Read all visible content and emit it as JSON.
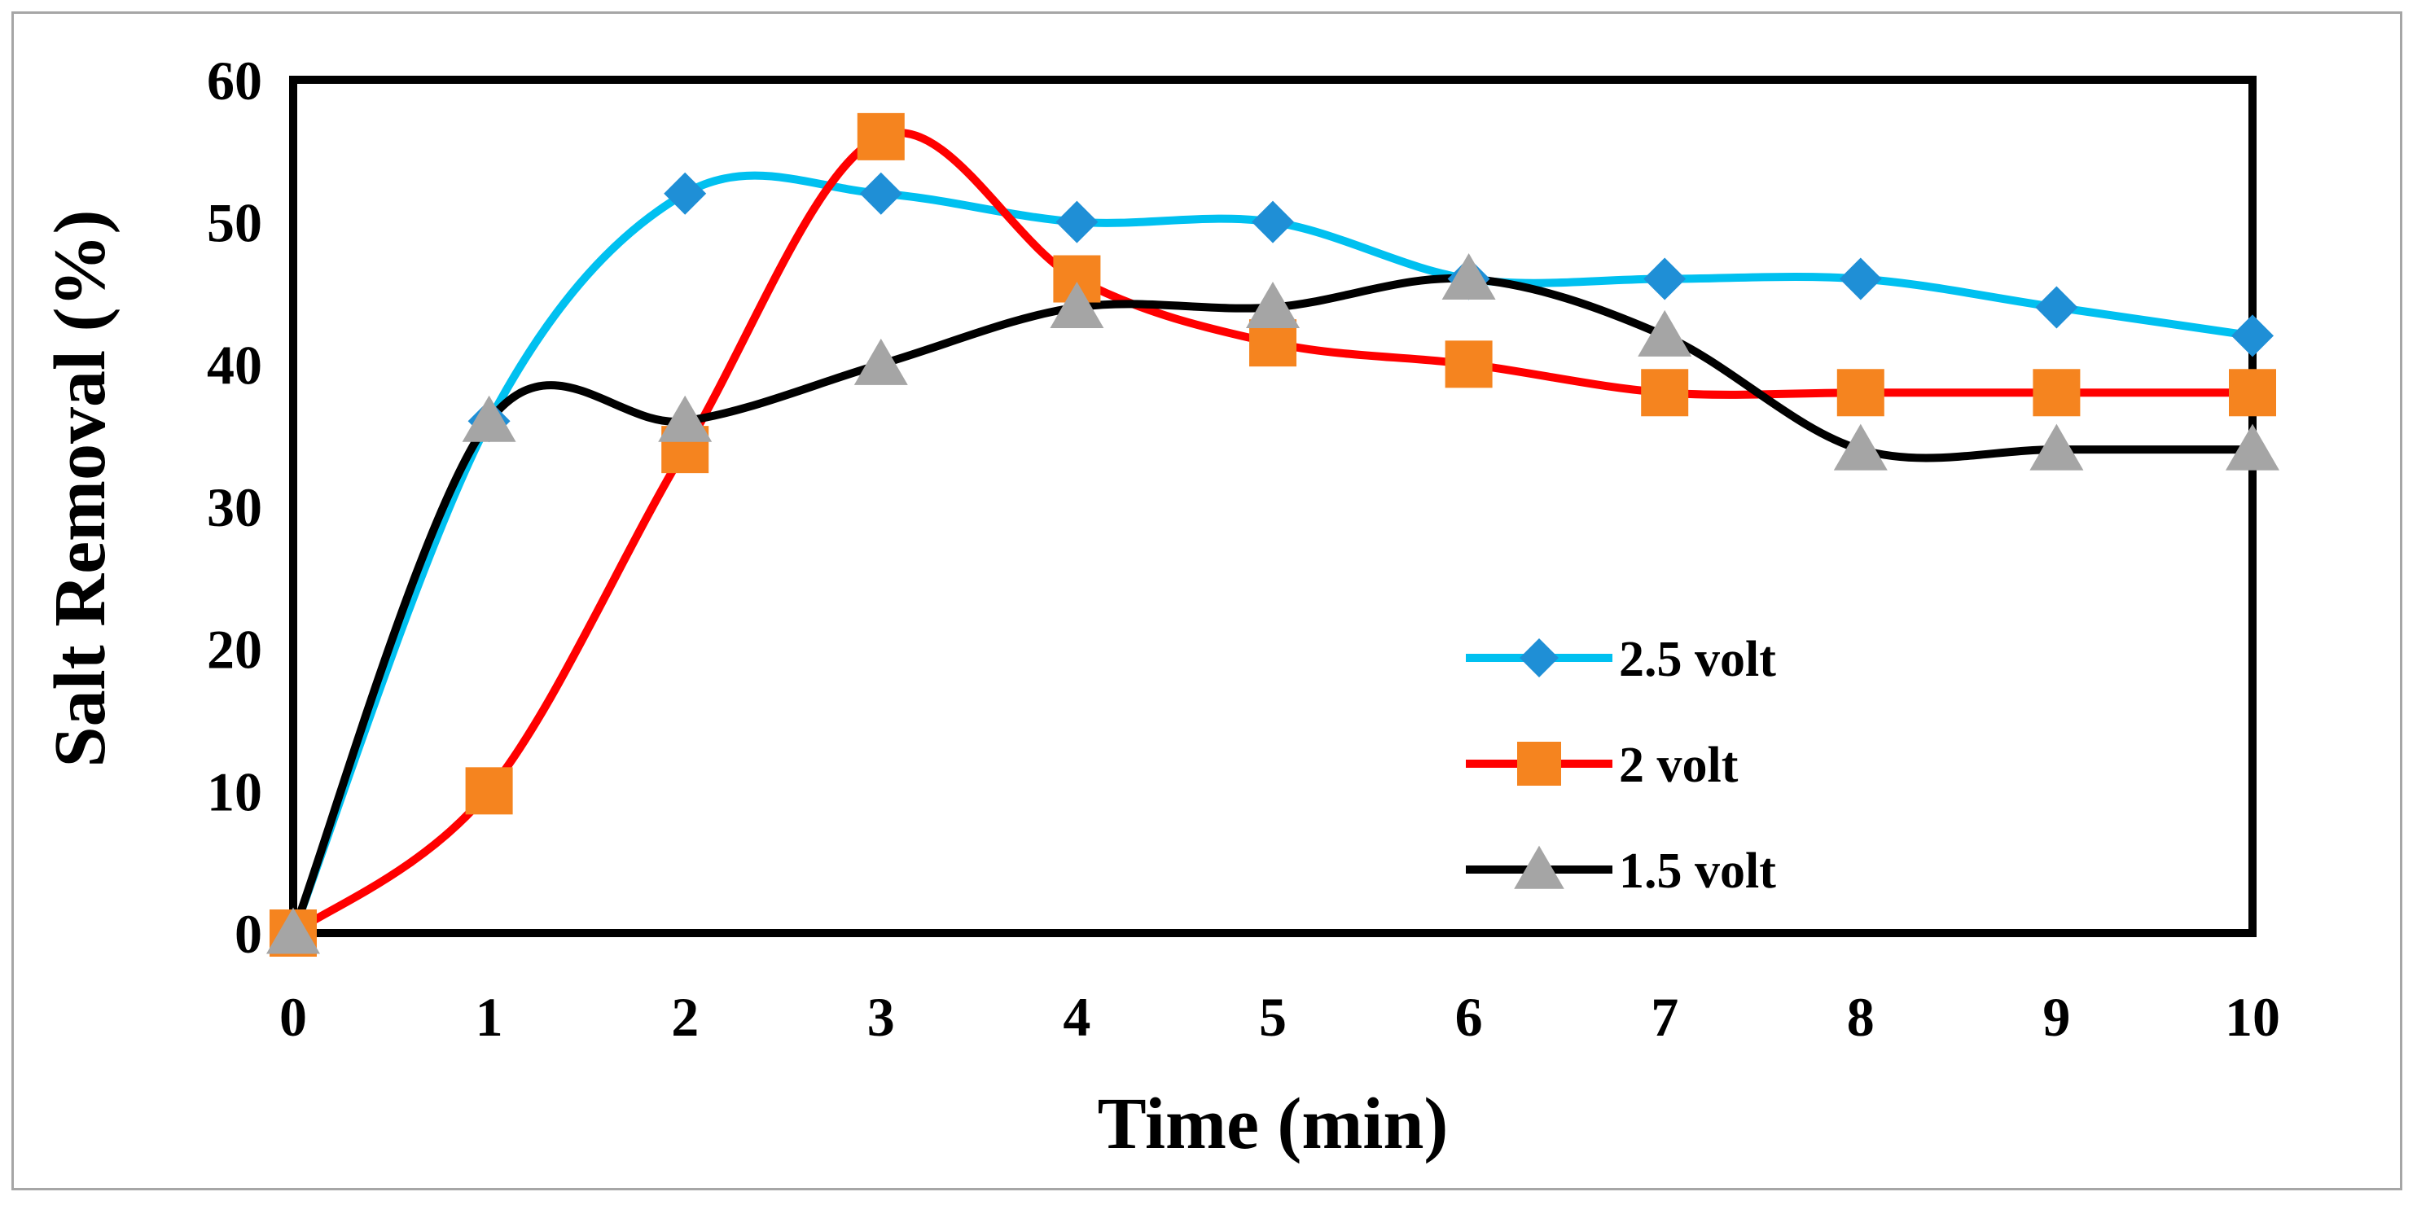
{
  "chart_data": {
    "type": "line",
    "smooth": true,
    "title": "",
    "xlabel": "Time (min)",
    "ylabel": "Salt Removal (%)",
    "x": [
      0,
      1,
      2,
      3,
      4,
      5,
      6,
      7,
      8,
      9,
      10
    ],
    "xlim": [
      0,
      10
    ],
    "ylim": [
      0,
      60
    ],
    "xticks": [
      "0",
      "1",
      "2",
      "3",
      "4",
      "5",
      "6",
      "7",
      "8",
      "9",
      "10"
    ],
    "yticks": [
      "0",
      "10",
      "20",
      "30",
      "40",
      "50",
      "60"
    ],
    "grid": false,
    "legend_position": "center-right",
    "series": [
      {
        "name": "2.5 volt",
        "values": [
          0,
          36,
          52,
          52,
          50,
          50,
          46,
          46,
          46,
          44,
          42
        ],
        "line_color": "#00c0f0",
        "marker": "diamond",
        "marker_color": "#1f8fd6"
      },
      {
        "name": "2 volt",
        "values": [
          0,
          10,
          34,
          56,
          46,
          41.5,
          40,
          38,
          38,
          38,
          38
        ],
        "line_color": "#ff0000",
        "marker": "square",
        "marker_color": "#f5841f"
      },
      {
        "name": "1.5 volt",
        "values": [
          0,
          36,
          36,
          40,
          44,
          44,
          46,
          42,
          34,
          34,
          34
        ],
        "line_color": "#000000",
        "marker": "triangle",
        "marker_color": "#a5a5a5"
      }
    ]
  }
}
